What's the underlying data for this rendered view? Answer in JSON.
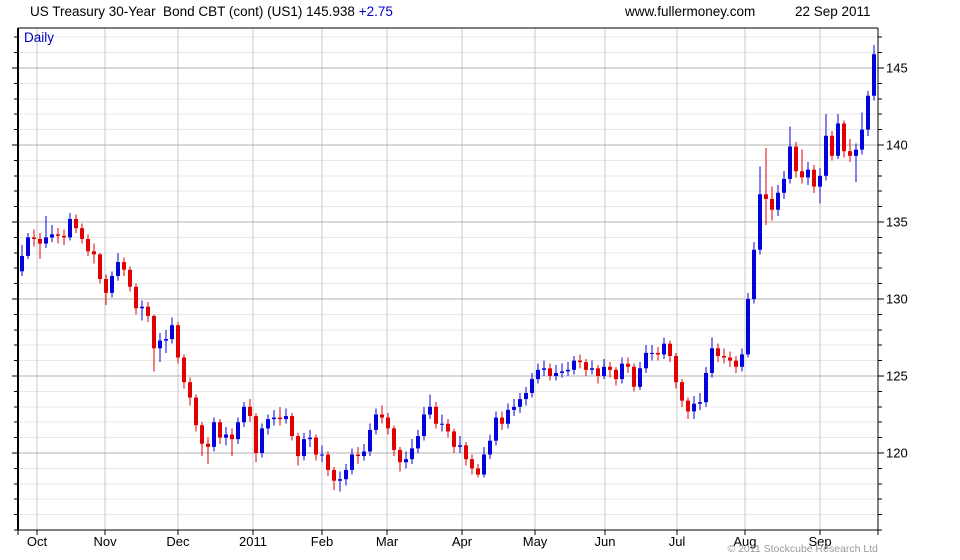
{
  "header": {
    "title": "US Treasury 30-Year  Bond CBT (cont) (US1) 145.938",
    "change": "+2.75",
    "site": "www.fullermoney.com",
    "date": "22 Sep 2011"
  },
  "chart": {
    "frequency_label": "Daily",
    "copyright": "© 2011 Stockcube Research Ltd"
  },
  "colors": {
    "up": "#0202dd",
    "down": "#e00202",
    "accent_text": "#0000bb",
    "grid_minor": "#e8e8e8",
    "grid_major": "#b0b0b0",
    "grid_vertical": "#c8c8c8",
    "axis": "#000000",
    "label": "#000000",
    "copyright": "#9a9a9a"
  },
  "chart_data": {
    "type": "candlestick",
    "title": "US Treasury 30-Year Bond CBT (cont) (US1)",
    "frequency": "Daily",
    "last_price": 145.938,
    "change": "+2.75",
    "ylim": [
      115.0,
      147.6
    ],
    "y_minor_step": 1,
    "y_major_ticks": [
      120,
      125,
      130,
      135,
      140,
      145
    ],
    "x_months": [
      {
        "label": "Oct",
        "f": 0.0221
      },
      {
        "label": "Nov",
        "f": 0.1012
      },
      {
        "label": "Dec",
        "f": 0.186
      },
      {
        "label": "2011",
        "f": 0.2733
      },
      {
        "label": "Feb",
        "f": 0.3535
      },
      {
        "label": "Mar",
        "f": 0.4291
      },
      {
        "label": "Apr",
        "f": 0.5163
      },
      {
        "label": "May",
        "f": 0.6012
      },
      {
        "label": "Jun",
        "f": 0.6826
      },
      {
        "label": "Jul",
        "f": 0.7663
      },
      {
        "label": "Aug",
        "f": 0.8453
      },
      {
        "label": "Sep",
        "f": 0.9326
      }
    ],
    "x_end_f": 1.0,
    "bars_x0_f": 0.00465,
    "bars_dx_f": 0.0069767,
    "bars_note": "each bar ~2 trading days, values [open,high,low,close] read from chart",
    "bars": [
      [
        131.8,
        133.5,
        131.5,
        132.8
      ],
      [
        132.8,
        134.3,
        132.6,
        134.0
      ],
      [
        134.0,
        134.5,
        133.4,
        133.9
      ],
      [
        133.9,
        134.3,
        132.6,
        133.6
      ],
      [
        133.6,
        135.4,
        133.3,
        134.0
      ],
      [
        134.0,
        134.8,
        133.7,
        134.2
      ],
      [
        134.2,
        134.6,
        133.6,
        134.1
      ],
      [
        134.1,
        134.5,
        133.5,
        134.0
      ],
      [
        134.0,
        135.6,
        133.8,
        135.2
      ],
      [
        135.2,
        135.5,
        134.3,
        134.6
      ],
      [
        134.6,
        134.9,
        133.6,
        133.9
      ],
      [
        133.9,
        134.2,
        132.8,
        133.1
      ],
      [
        133.1,
        133.6,
        132.3,
        132.9
      ],
      [
        132.9,
        133.0,
        131.0,
        131.3
      ],
      [
        131.3,
        131.6,
        129.6,
        130.4
      ],
      [
        130.4,
        131.8,
        130.1,
        131.5
      ],
      [
        131.5,
        133.0,
        131.2,
        132.4
      ],
      [
        132.4,
        132.7,
        131.5,
        131.9
      ],
      [
        131.9,
        132.1,
        130.5,
        130.8
      ],
      [
        130.8,
        131.0,
        129.0,
        129.4
      ],
      [
        129.4,
        129.9,
        128.6,
        129.5
      ],
      [
        129.5,
        129.8,
        128.5,
        128.9
      ],
      [
        128.9,
        129.0,
        125.3,
        126.8
      ],
      [
        126.8,
        127.8,
        125.9,
        127.3
      ],
      [
        127.3,
        128.0,
        126.5,
        127.4
      ],
      [
        127.4,
        128.8,
        127.1,
        128.3
      ],
      [
        128.3,
        128.5,
        125.8,
        126.2
      ],
      [
        126.2,
        126.4,
        124.2,
        124.6
      ],
      [
        124.6,
        124.9,
        123.1,
        123.6
      ],
      [
        123.6,
        123.8,
        121.4,
        121.8
      ],
      [
        121.8,
        122.0,
        119.8,
        120.6
      ],
      [
        120.6,
        121.0,
        119.3,
        120.4
      ],
      [
        120.4,
        122.3,
        120.1,
        122.0
      ],
      [
        122.0,
        122.2,
        120.6,
        121.0
      ],
      [
        121.0,
        121.7,
        120.5,
        121.2
      ],
      [
        121.2,
        121.6,
        119.8,
        120.9
      ],
      [
        120.9,
        122.3,
        120.6,
        122.0
      ],
      [
        122.0,
        123.3,
        121.7,
        123.0
      ],
      [
        123.0,
        123.5,
        122.0,
        122.4
      ],
      [
        122.4,
        122.6,
        119.4,
        120.0
      ],
      [
        120.0,
        121.9,
        119.7,
        121.6
      ],
      [
        121.6,
        122.5,
        121.2,
        122.2
      ],
      [
        122.2,
        122.8,
        121.8,
        122.3
      ],
      [
        122.3,
        123.0,
        121.8,
        122.2
      ],
      [
        122.2,
        122.9,
        121.9,
        122.4
      ],
      [
        122.4,
        122.6,
        120.8,
        121.1
      ],
      [
        121.1,
        121.3,
        119.2,
        119.8
      ],
      [
        119.8,
        121.3,
        119.5,
        120.9
      ],
      [
        120.9,
        121.5,
        120.4,
        121.0
      ],
      [
        121.0,
        121.2,
        119.5,
        119.9
      ],
      [
        119.9,
        120.5,
        119.4,
        119.9
      ],
      [
        119.9,
        120.1,
        118.5,
        118.9
      ],
      [
        118.9,
        119.1,
        117.6,
        118.2
      ],
      [
        118.2,
        118.8,
        117.5,
        118.3
      ],
      [
        118.3,
        119.3,
        117.9,
        118.9
      ],
      [
        118.9,
        120.3,
        118.6,
        119.9
      ],
      [
        119.9,
        120.4,
        119.3,
        119.8
      ],
      [
        119.8,
        120.6,
        119.5,
        120.1
      ],
      [
        120.1,
        121.9,
        119.8,
        121.5
      ],
      [
        121.5,
        122.9,
        121.2,
        122.5
      ],
      [
        122.5,
        123.1,
        121.9,
        122.3
      ],
      [
        122.3,
        122.6,
        121.2,
        121.6
      ],
      [
        121.6,
        121.8,
        119.8,
        120.2
      ],
      [
        120.2,
        120.4,
        118.8,
        119.4
      ],
      [
        119.4,
        120.1,
        119.0,
        119.6
      ],
      [
        119.6,
        120.9,
        119.3,
        120.3
      ],
      [
        120.3,
        121.5,
        120.0,
        121.1
      ],
      [
        121.1,
        123.0,
        120.8,
        122.5
      ],
      [
        122.5,
        123.8,
        122.2,
        123.0
      ],
      [
        123.0,
        123.3,
        121.6,
        121.9
      ],
      [
        121.9,
        122.5,
        121.4,
        121.9
      ],
      [
        121.9,
        122.2,
        121.0,
        121.4
      ],
      [
        121.4,
        121.6,
        120.0,
        120.4
      ],
      [
        120.4,
        121.1,
        120.0,
        120.5
      ],
      [
        120.5,
        120.7,
        119.2,
        119.6
      ],
      [
        119.6,
        119.9,
        118.6,
        119.0
      ],
      [
        119.0,
        119.3,
        118.4,
        118.6
      ],
      [
        118.6,
        120.4,
        118.4,
        119.9
      ],
      [
        119.9,
        121.2,
        119.6,
        120.8
      ],
      [
        120.8,
        122.7,
        120.5,
        122.3
      ],
      [
        122.3,
        122.7,
        121.5,
        121.9
      ],
      [
        121.9,
        123.2,
        121.6,
        122.8
      ],
      [
        122.8,
        123.5,
        122.4,
        123.0
      ],
      [
        123.0,
        123.9,
        122.6,
        123.5
      ],
      [
        123.5,
        124.3,
        123.1,
        123.9
      ],
      [
        123.9,
        125.2,
        123.6,
        124.8
      ],
      [
        124.8,
        125.8,
        124.5,
        125.4
      ],
      [
        125.4,
        126.0,
        125.0,
        125.5
      ],
      [
        125.5,
        125.8,
        124.7,
        125.0
      ],
      [
        125.0,
        125.7,
        124.7,
        125.2
      ],
      [
        125.2,
        125.8,
        124.9,
        125.3
      ],
      [
        125.3,
        125.9,
        125.0,
        125.4
      ],
      [
        125.4,
        126.3,
        125.1,
        126.0
      ],
      [
        126.0,
        126.4,
        125.5,
        125.9
      ],
      [
        125.9,
        126.1,
        125.0,
        125.4
      ],
      [
        125.4,
        126.0,
        125.1,
        125.5
      ],
      [
        125.5,
        125.7,
        124.5,
        125.0
      ],
      [
        125.0,
        126.1,
        124.8,
        125.6
      ],
      [
        125.6,
        125.9,
        124.9,
        125.4
      ],
      [
        125.4,
        125.6,
        124.4,
        124.8
      ],
      [
        124.8,
        126.2,
        124.5,
        125.8
      ],
      [
        125.8,
        126.2,
        125.2,
        125.6
      ],
      [
        125.6,
        125.8,
        124.0,
        124.3
      ],
      [
        124.3,
        125.9,
        124.1,
        125.5
      ],
      [
        125.5,
        127.0,
        125.2,
        126.5
      ],
      [
        126.5,
        127.0,
        126.0,
        126.5
      ],
      [
        126.5,
        126.9,
        126.0,
        126.4
      ],
      [
        126.4,
        127.5,
        126.1,
        127.1
      ],
      [
        127.1,
        127.3,
        125.9,
        126.3
      ],
      [
        126.3,
        126.5,
        124.2,
        124.6
      ],
      [
        124.6,
        124.8,
        123.0,
        123.4
      ],
      [
        123.4,
        123.6,
        122.2,
        122.7
      ],
      [
        122.7,
        123.7,
        122.2,
        123.2
      ],
      [
        123.2,
        123.9,
        122.8,
        123.3
      ],
      [
        123.3,
        125.6,
        123.0,
        125.2
      ],
      [
        125.2,
        127.5,
        124.9,
        126.8
      ],
      [
        126.8,
        127.1,
        125.9,
        126.3
      ],
      [
        126.3,
        126.8,
        125.8,
        126.2
      ],
      [
        126.2,
        126.6,
        125.6,
        126.0
      ],
      [
        126.0,
        126.3,
        125.2,
        125.6
      ],
      [
        125.6,
        126.8,
        125.3,
        126.4
      ],
      [
        126.4,
        130.4,
        126.2,
        130.0
      ],
      [
        130.0,
        133.7,
        129.7,
        133.2
      ],
      [
        133.2,
        138.6,
        132.9,
        136.8
      ],
      [
        136.8,
        139.8,
        134.8,
        136.5
      ],
      [
        136.5,
        137.3,
        135.1,
        135.8
      ],
      [
        135.8,
        137.4,
        135.4,
        136.9
      ],
      [
        136.9,
        138.3,
        136.5,
        137.8
      ],
      [
        137.8,
        141.2,
        137.5,
        139.9
      ],
      [
        139.9,
        140.2,
        137.9,
        138.3
      ],
      [
        138.3,
        139.7,
        137.5,
        137.9
      ],
      [
        137.9,
        138.9,
        137.4,
        138.4
      ],
      [
        138.4,
        138.7,
        136.9,
        137.3
      ],
      [
        137.3,
        138.5,
        136.2,
        138.0
      ],
      [
        138.0,
        142.0,
        137.7,
        140.6
      ],
      [
        140.6,
        140.9,
        139.0,
        139.3
      ],
      [
        139.3,
        142.0,
        139.1,
        141.4
      ],
      [
        141.4,
        141.6,
        139.2,
        139.6
      ],
      [
        139.6,
        140.4,
        138.9,
        139.3
      ],
      [
        139.3,
        140.1,
        137.6,
        139.7
      ],
      [
        139.7,
        142.1,
        139.4,
        141.0
      ],
      [
        141.0,
        143.5,
        140.6,
        143.2
      ],
      [
        143.2,
        146.5,
        142.9,
        145.9
      ]
    ]
  },
  "layout_labels": {
    "y_axis_side": "right",
    "grid": "minor 1pt / major 5pt horizontal, monthly vertical"
  }
}
